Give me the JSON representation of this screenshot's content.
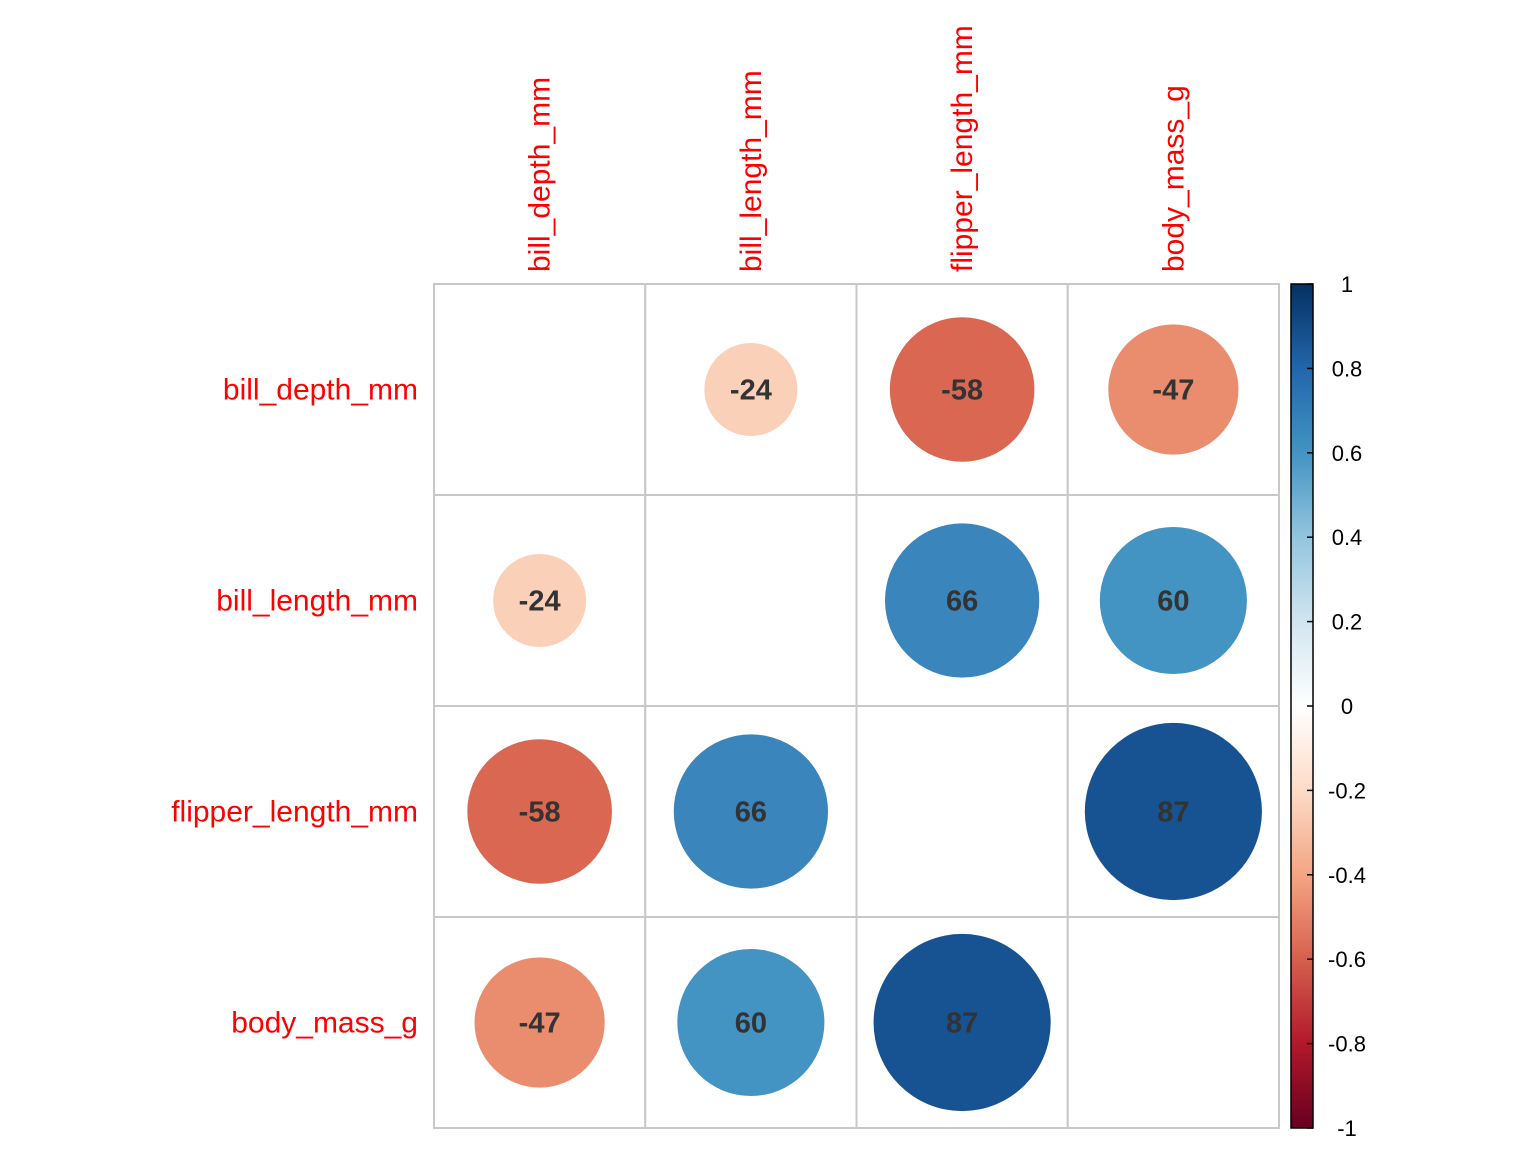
{
  "chart_data": {
    "type": "heatmap",
    "variables": [
      "bill_depth_mm",
      "bill_length_mm",
      "flipper_length_mm",
      "body_mass_g"
    ],
    "matrix": [
      [
        null,
        -0.24,
        -0.58,
        -0.47
      ],
      [
        -0.24,
        null,
        0.66,
        0.6
      ],
      [
        -0.58,
        0.66,
        null,
        0.87
      ],
      [
        -0.47,
        0.6,
        0.87,
        null
      ]
    ],
    "cell_labels": [
      [
        null,
        "-24",
        "-58",
        "-47"
      ],
      [
        "-24",
        null,
        "66",
        "60"
      ],
      [
        "-58",
        "66",
        null,
        "87"
      ],
      [
        "-47",
        "60",
        "87",
        null
      ]
    ],
    "legend": {
      "range": [
        -1,
        1
      ],
      "ticks": [
        1,
        0.8,
        0.6,
        0.4,
        0.2,
        0,
        -0.2,
        -0.4,
        -0.6,
        -0.8,
        -1
      ],
      "tick_labels": [
        "1",
        "0.8",
        "0.6",
        "0.4",
        "0.2",
        "0",
        "-0.2",
        "-0.4",
        "-0.6",
        "-0.8",
        "-1"
      ],
      "placement": "right"
    },
    "colors": {
      "label_text": "#ff0000",
      "cell_text": "#333333",
      "grid": "#c8c8c8",
      "scale": [
        "#67001f",
        "#b2182b",
        "#d6604d",
        "#f4a582",
        "#fddbc7",
        "#ffffff",
        "#d1e5f0",
        "#92c5de",
        "#4393c3",
        "#2166ac",
        "#053061"
      ]
    }
  }
}
